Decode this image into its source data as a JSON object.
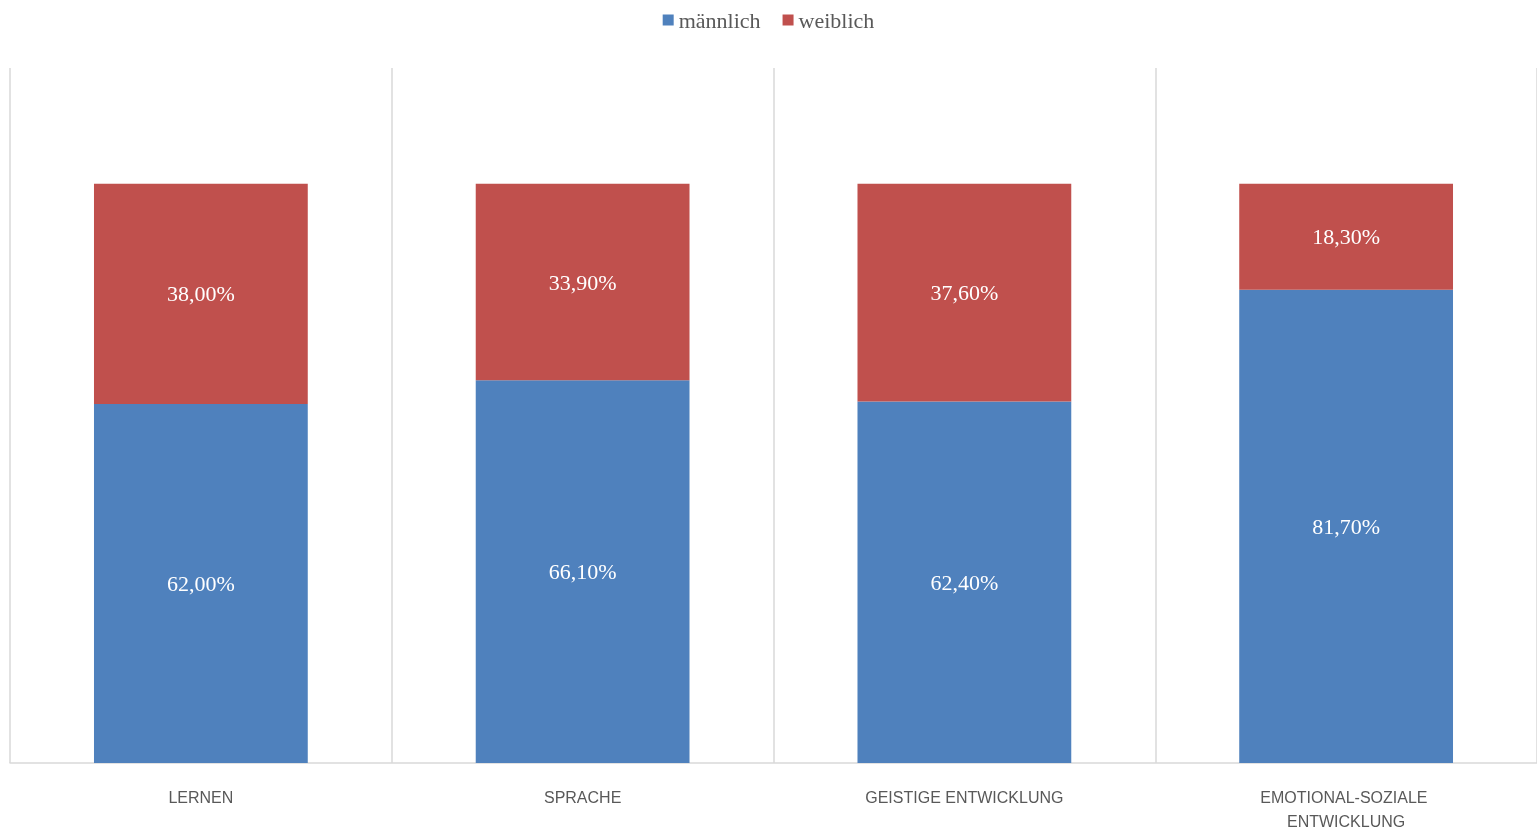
{
  "chart_data": {
    "type": "bar",
    "stacked": true,
    "categories": [
      "LERNEN",
      "SPRACHE",
      "GEISTIGE ENTWICKLUNG",
      "EMOTIONAL-SOZIALE ENTWICKLUNG"
    ],
    "series": [
      {
        "name": "männlich",
        "color": "#4f81bd",
        "values": [
          62.0,
          66.1,
          62.4,
          81.7
        ],
        "value_labels": [
          "62,00%",
          "66,10%",
          "62,40%",
          "81,70%"
        ]
      },
      {
        "name": "weiblich",
        "color": "#c0504d",
        "values": [
          38.0,
          33.9,
          37.6,
          18.3
        ],
        "value_labels": [
          "38,00%",
          "33,90%",
          "37,60%",
          "18,30%"
        ]
      }
    ],
    "ylim": [
      0,
      120
    ],
    "tick_labels": "x",
    "grid": "x",
    "legend": "top"
  }
}
